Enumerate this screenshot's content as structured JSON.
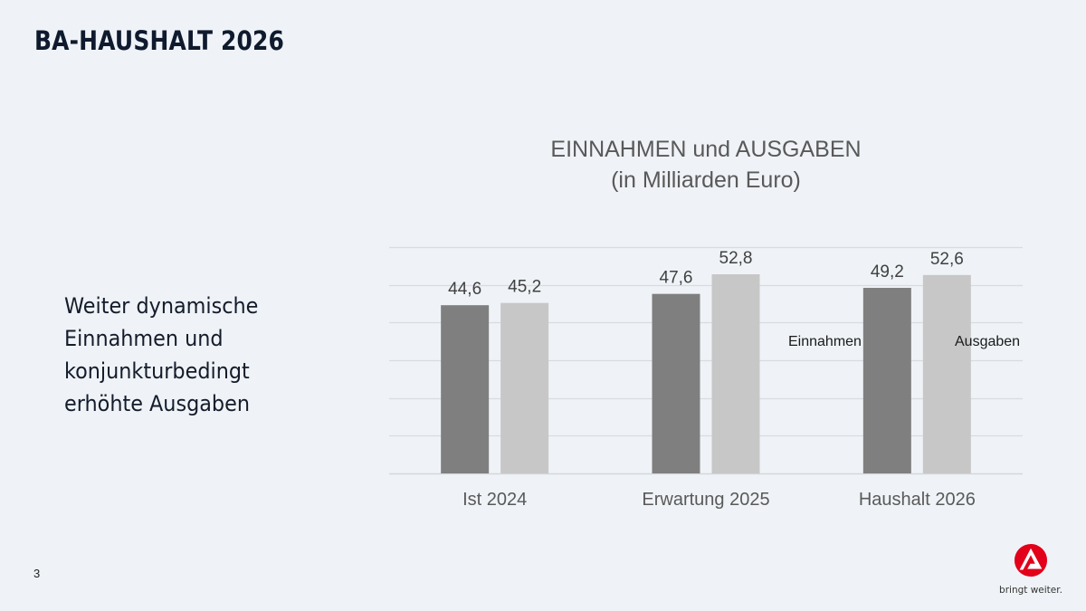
{
  "slide": {
    "title": "BA-HAUSHALT 2026",
    "body_lines": [
      "Weiter dynamische",
      "Einnahmen und",
      "konjunkturbedingt",
      "erhöhte Ausgaben"
    ],
    "page_number": "3"
  },
  "logo": {
    "icon": "bundesagentur-logo-icon",
    "tagline": "bringt weiter.",
    "color": "#e2001a"
  },
  "chart_data": {
    "type": "bar",
    "title": "EINNAHMEN und AUSGABEN",
    "subtitle": "(in Milliarden Euro)",
    "categories": [
      "Ist 2024",
      "Erwartung 2025",
      "Haushalt 2026"
    ],
    "series": [
      {
        "name": "Einnahmen",
        "values": [
          44.6,
          47.6,
          49.2
        ],
        "labels": [
          "44,6",
          "47,6",
          "49,2"
        ],
        "color": "#7f7f7f"
      },
      {
        "name": "Ausgaben",
        "values": [
          45.2,
          52.8,
          52.6
        ],
        "labels": [
          "45,2",
          "52,8",
          "52,6"
        ],
        "color": "#c7c7c7"
      }
    ],
    "xlabel": "",
    "ylabel": "",
    "ylim": [
      0,
      60
    ],
    "ytick_step": 10,
    "grid": true,
    "y_axis_labels_shown": false,
    "legend": [
      "Einnahmen",
      "Ausgaben"
    ],
    "legend_placement": "inside-right"
  }
}
